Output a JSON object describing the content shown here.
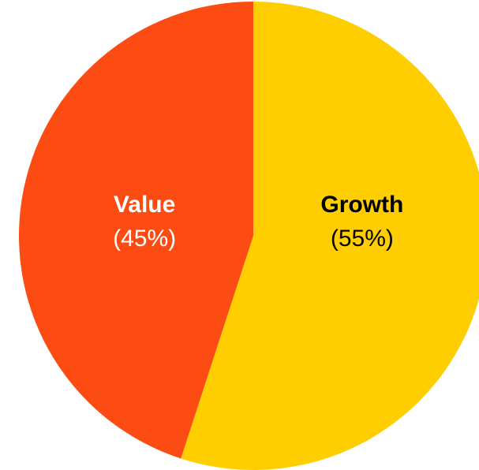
{
  "chart_data": {
    "type": "pie",
    "categories": [
      "Growth",
      "Value"
    ],
    "values": [
      55,
      45
    ],
    "value_labels": [
      "(55%)",
      "(45%)"
    ],
    "colors": [
      "#ffce00",
      "#fc4c14"
    ]
  }
}
